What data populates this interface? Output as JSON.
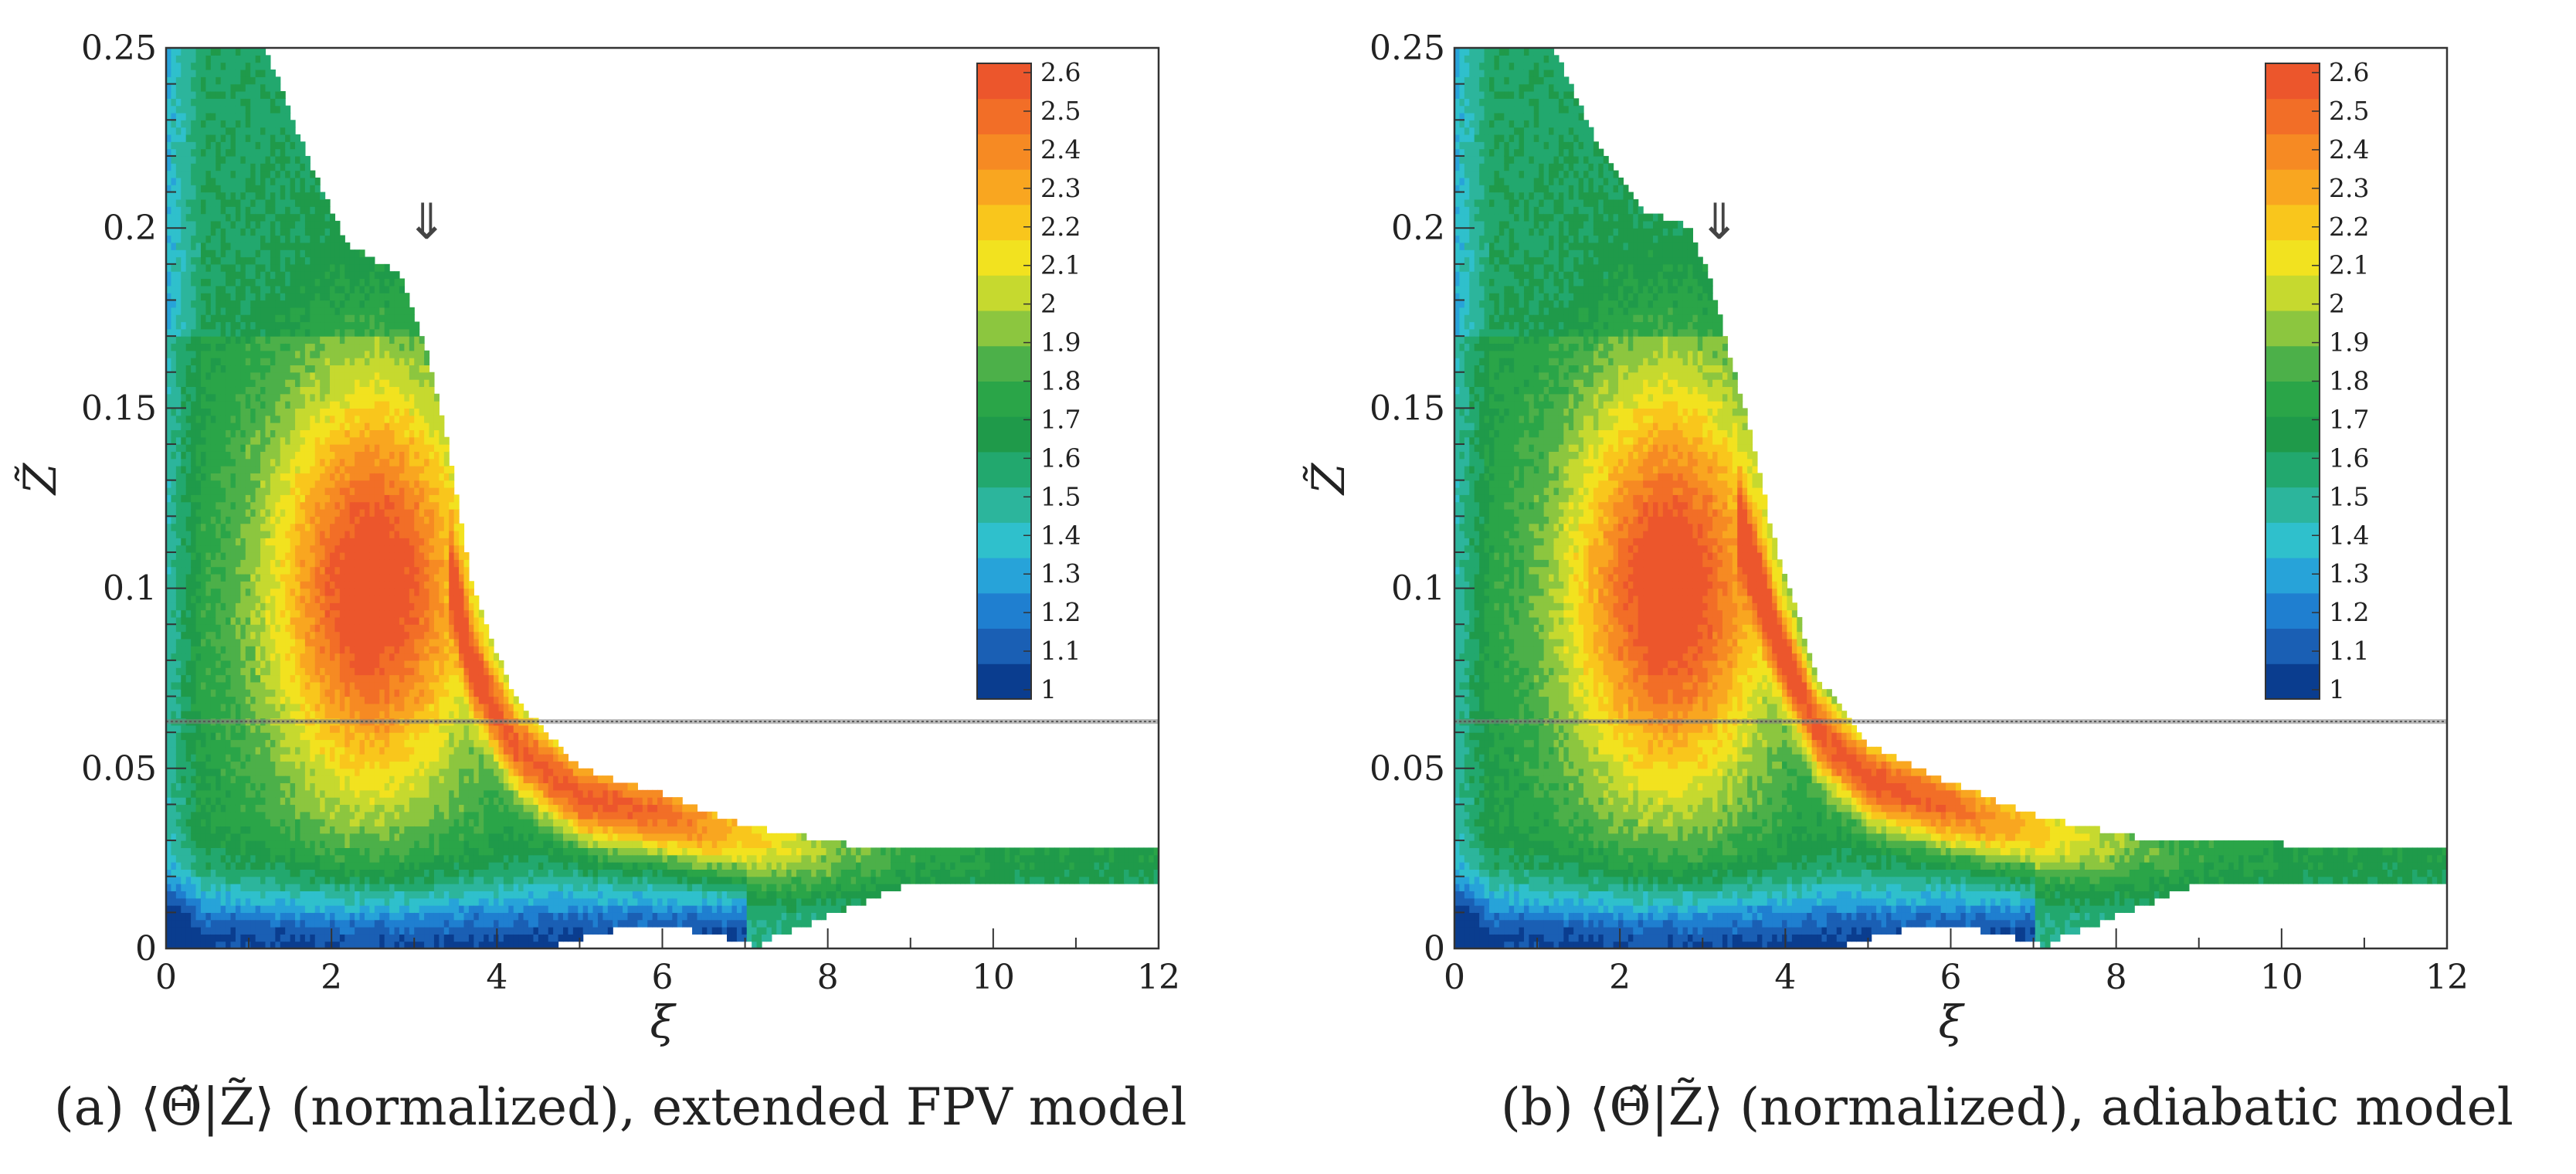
{
  "colors": {
    "scale": [
      "#0a3d8f",
      "#1a5fb4",
      "#1f7fd0",
      "#27a3d9",
      "#2fc0cc",
      "#2cb59c",
      "#22a86e",
      "#1f9a4a",
      "#2aa548",
      "#4cb049",
      "#8cc63f",
      "#c6d92f",
      "#f2e21f",
      "#f9c61c",
      "#f9a620",
      "#f68a23",
      "#f26e27",
      "#ec562c"
    ],
    "band": "#7f7f7f",
    "frame": "#333333"
  },
  "panels": [
    {
      "caption": "(a) ⟨Θ̃|Z̃⟩ (normalized), extended FPV model",
      "arrow": "⇓",
      "chart_data": {
        "type": "heatmap",
        "title": "⟨Θ̃|Z̃⟩ (normalized), extended FPV model",
        "xlabel": "ξ",
        "ylabel": "Z̃",
        "xlim": [
          0,
          12
        ],
        "ylim": [
          0,
          0.25
        ],
        "xticks": [
          0,
          2,
          4,
          6,
          8,
          10,
          12
        ],
        "yticks": [
          0,
          0.05,
          0.1,
          0.15,
          0.2,
          0.25
        ],
        "xtick_labels": [
          "0",
          "2",
          "4",
          "6",
          "8",
          "10",
          "12"
        ],
        "ytick_labels": [
          "0",
          "0.05",
          "0.1",
          "0.15",
          "0.2",
          "0.25"
        ],
        "colorbar": {
          "min": 1.0,
          "max": 2.6,
          "labels": [
            "2.6",
            "2.5",
            "2.4",
            "2.3",
            "2.2",
            "2.1",
            "2",
            "1.9",
            "1.8",
            "1.7",
            "1.6",
            "1.5",
            "1.4",
            "1.3",
            "1.2",
            "1.1",
            "1"
          ]
        },
        "reference_line_y": 0.063,
        "arrow_at_xi": 3.15,
        "upper_envelope": [
          [
            0.35,
            0.25
          ],
          [
            1.2,
            0.25
          ],
          [
            1.7,
            0.22
          ],
          [
            2.2,
            0.195
          ],
          [
            2.8,
            0.188
          ],
          [
            3.1,
            0.17
          ],
          [
            3.4,
            0.14
          ],
          [
            3.7,
            0.1
          ],
          [
            4.2,
            0.07
          ],
          [
            5,
            0.05
          ],
          [
            6,
            0.043
          ],
          [
            7,
            0.034
          ],
          [
            8.2,
            0.029
          ],
          [
            10,
            0.028
          ],
          [
            12,
            0.027
          ]
        ],
        "peak_region": {
          "xi": 2.5,
          "z": 0.1,
          "value": 2.6
        }
      }
    },
    {
      "caption": "(b) ⟨Θ̃|Z̃⟩ (normalized), adiabatic model",
      "arrow": "⇓",
      "chart_data": {
        "type": "heatmap",
        "title": "⟨Θ̃|Z̃⟩ (normalized), adiabatic model",
        "xlabel": "ξ",
        "ylabel": "Z̃",
        "xlim": [
          0,
          12
        ],
        "ylim": [
          0,
          0.25
        ],
        "xticks": [
          0,
          2,
          4,
          6,
          8,
          10,
          12
        ],
        "yticks": [
          0,
          0.05,
          0.1,
          0.15,
          0.2,
          0.25
        ],
        "xtick_labels": [
          "0",
          "2",
          "4",
          "6",
          "8",
          "10",
          "12"
        ],
        "ytick_labels": [
          "0",
          "0.05",
          "0.1",
          "0.15",
          "0.2",
          "0.25"
        ],
        "colorbar": {
          "min": 1.0,
          "max": 2.6,
          "labels": [
            "2.6",
            "2.5",
            "2.4",
            "2.3",
            "2.2",
            "2.1",
            "2",
            "1.9",
            "1.8",
            "1.7",
            "1.6",
            "1.5",
            "1.4",
            "1.3",
            "1.2",
            "1.1",
            "1"
          ]
        },
        "reference_line_y": 0.063,
        "arrow_at_xi": 3.2,
        "upper_envelope": [
          [
            0.35,
            0.25
          ],
          [
            1.2,
            0.25
          ],
          [
            1.7,
            0.225
          ],
          [
            2.3,
            0.205
          ],
          [
            2.85,
            0.2
          ],
          [
            3.1,
            0.185
          ],
          [
            3.5,
            0.15
          ],
          [
            3.9,
            0.11
          ],
          [
            4.4,
            0.075
          ],
          [
            5,
            0.057
          ],
          [
            6,
            0.046
          ],
          [
            7,
            0.037
          ],
          [
            8.2,
            0.031
          ],
          [
            10,
            0.029
          ],
          [
            12,
            0.028
          ]
        ],
        "peak_region": {
          "xi": 2.6,
          "z": 0.1,
          "value": 2.6
        }
      }
    }
  ]
}
